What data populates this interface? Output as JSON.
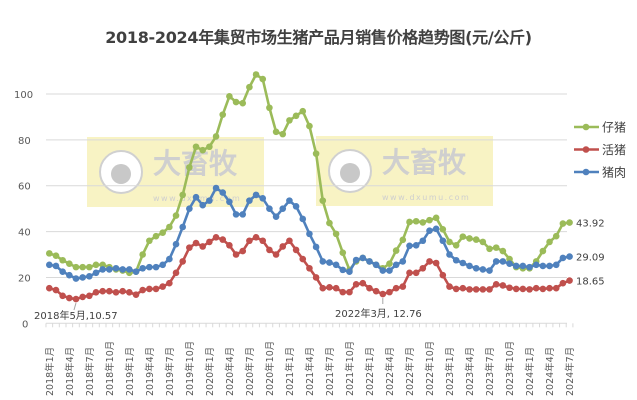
{
  "chart_data": {
    "type": "line",
    "title": "2018-2024年集贸市场生猪产品月销售价格趋势图(元/公斤)",
    "xlabel": "",
    "ylabel": "",
    "ylim": [
      0,
      110
    ],
    "yticks": [
      0,
      20,
      40,
      60,
      80,
      100
    ],
    "grid": true,
    "legend_placement": "right",
    "x_start": "2018-01",
    "x_end": "2024-07",
    "x_tick_labels": [
      "2018年1月",
      "2018年4月",
      "2018年7月",
      "2018年10月",
      "2019年1月",
      "2019年4月",
      "2019年7月",
      "2019年10月",
      "2020年1月",
      "2020年4月",
      "2020年7月",
      "2020年10月",
      "2021年1月",
      "2021年4月",
      "2021年7月",
      "2021年10月",
      "2022年1月",
      "2022年4月",
      "2022年7月",
      "2022年10月",
      "2023年1月",
      "2023年4月",
      "2023年7月",
      "2023年10月",
      "2024年1月",
      "2024年4月",
      "2024年7月"
    ],
    "series": [
      {
        "name": "仔猪",
        "color": "#9bbb59",
        "end_label": "43.92",
        "values": [
          30.5,
          29.5,
          27.5,
          26,
          24.5,
          24.5,
          24.5,
          25.5,
          25.5,
          24.5,
          23.5,
          23,
          22,
          22.5,
          30,
          36,
          38,
          39.5,
          42,
          47,
          56,
          68,
          77,
          75.5,
          77,
          81.5,
          91,
          99,
          96.5,
          96,
          103,
          108.5,
          106.5,
          94,
          83.5,
          82.5,
          88.5,
          90.5,
          92.5,
          86,
          74,
          53.5,
          43.7,
          39,
          30.8,
          23.3,
          27,
          28.5,
          27,
          25.5,
          24,
          26,
          31.7,
          36.4,
          44.2,
          44.5,
          44,
          45,
          46,
          41,
          35.5,
          34,
          37.8,
          37,
          36.5,
          35.5,
          32.5,
          33,
          31.5,
          28,
          24.5,
          24,
          24,
          27,
          31.5,
          35.5,
          38,
          43.5,
          43.92
        ]
      },
      {
        "name": "活猪",
        "color": "#c0504d",
        "end_label": "18.65",
        "values": [
          15.3,
          14.5,
          12,
          11,
          10.57,
          11.5,
          12,
          13.5,
          14,
          14,
          13.5,
          14,
          13.5,
          12.5,
          14.5,
          15,
          15,
          16,
          17.5,
          22,
          27,
          33,
          35,
          33.5,
          35.5,
          37.5,
          36.5,
          34,
          30,
          31.5,
          36,
          37.5,
          36,
          32,
          30,
          33.5,
          36,
          32,
          28,
          24,
          20,
          15.3,
          15.7,
          15.3,
          13.6,
          13.6,
          17,
          17.5,
          15.3,
          14,
          12.76,
          13.6,
          15.3,
          16,
          22,
          22,
          24,
          27,
          26.3,
          21,
          16,
          15,
          15.3,
          14.8,
          14.8,
          14.8,
          14.8,
          17,
          16.5,
          15.5,
          15,
          15,
          14.8,
          15.3,
          15,
          15.3,
          15.3,
          17.5,
          18.65
        ]
      },
      {
        "name": "猪肉",
        "color": "#4f81bd",
        "end_label": "29.09",
        "values": [
          25.5,
          25,
          22.5,
          21,
          19.5,
          20,
          20.5,
          22,
          23.5,
          23.5,
          24,
          23.5,
          23.5,
          22.5,
          24,
          24.5,
          24.5,
          25.5,
          28,
          34.5,
          42,
          50,
          55,
          51.5,
          53.5,
          59,
          57,
          53,
          47.5,
          47.5,
          53.5,
          56,
          54.5,
          50,
          46.5,
          50,
          53.5,
          51,
          45.5,
          39,
          33.3,
          27,
          26.5,
          25.5,
          23.3,
          22.5,
          27.6,
          28.5,
          27,
          25.5,
          23,
          23,
          25.5,
          27,
          33.8,
          34,
          36,
          40.4,
          41.2,
          36,
          30,
          27.5,
          26.3,
          25,
          24,
          23.5,
          23,
          27,
          27,
          26,
          25,
          25,
          24.5,
          25.5,
          25,
          25,
          25.5,
          28.5,
          29.09
        ]
      }
    ],
    "annotations": [
      {
        "text": "2018年5月,10.57",
        "x": "2018-05",
        "y": 10.57
      },
      {
        "text": "2022年3月, 12.76",
        "x": "2022-03",
        "y": 12.76
      }
    ],
    "watermark": {
      "logo_text": "大畜牧",
      "url": "www.dxumu.com",
      "count": 2
    }
  }
}
